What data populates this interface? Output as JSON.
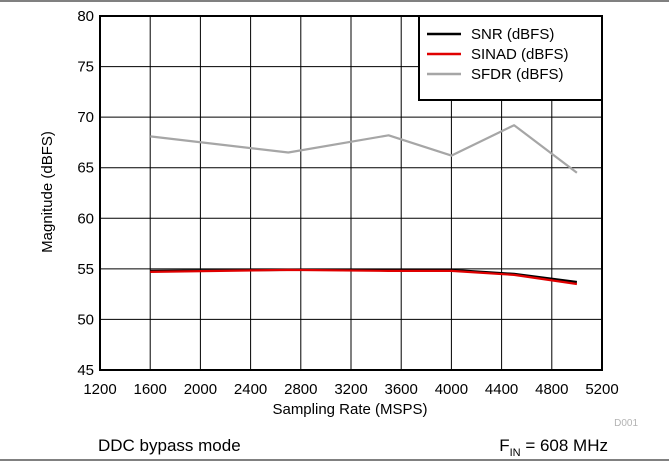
{
  "chart_data": {
    "type": "line",
    "xlabel": "Sampling Rate (MSPS)",
    "ylabel": "Magnitude (dBFS)",
    "xlim": [
      1200,
      5200
    ],
    "ylim": [
      45,
      80
    ],
    "xticks": [
      1200,
      1600,
      2000,
      2400,
      2800,
      3200,
      3600,
      4000,
      4400,
      4800,
      5200
    ],
    "yticks": [
      45,
      50,
      55,
      60,
      65,
      70,
      75,
      80
    ],
    "grid": true,
    "legend_position": "top-right",
    "series": [
      {
        "name": "SNR (dBFS)",
        "color": "#000000",
        "x": [
          1600,
          2700,
          3500,
          4000,
          4500,
          5000
        ],
        "y": [
          54.8,
          54.9,
          54.9,
          54.9,
          54.5,
          53.7
        ]
      },
      {
        "name": "SINAD (dBFS)",
        "color": "#e00000",
        "x": [
          1600,
          2700,
          3500,
          4000,
          4500,
          5000
        ],
        "y": [
          54.7,
          54.9,
          54.8,
          54.8,
          54.4,
          53.5
        ]
      },
      {
        "name": "SFDR (dBFS)",
        "color": "#a6a6a6",
        "x": [
          1600,
          2700,
          3500,
          4000,
          4500,
          5000
        ],
        "y": [
          68.1,
          66.5,
          68.2,
          66.2,
          69.2,
          64.5
        ]
      }
    ],
    "watermark": "D001",
    "footer_left": "DDC bypass mode",
    "footer_right": {
      "prefix": "F",
      "subscript": "IN",
      "suffix": " = 608 MHz"
    }
  }
}
